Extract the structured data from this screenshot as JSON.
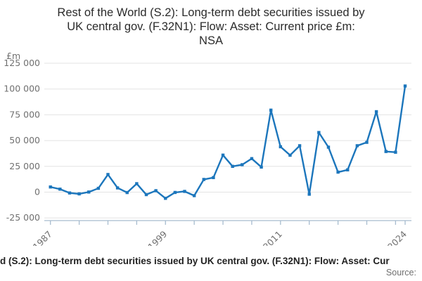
{
  "title_lines": [
    "Rest of the World (S.2): Long-term debt securities issued by",
    "UK central gov. (F.32N1): Flow: Asset: Current price £m:",
    "NSA"
  ],
  "footer": {
    "caption_visible": "d (S.2): Long-term debt securities issued by UK central gov. (F.32N1): Flow: Asset: Cur",
    "source_label": "Source:"
  },
  "chart_data": {
    "type": "line",
    "title": "Rest of the World (S.2): Long-term debt securities issued by UK central gov. (F.32N1): Flow: Asset: Current price £m: NSA",
    "ylabel": "£m",
    "xlabel": "",
    "grid": "horizontal",
    "legend": "none",
    "x": [
      1987,
      1988,
      1989,
      1990,
      1991,
      1992,
      1993,
      1994,
      1995,
      1996,
      1997,
      1998,
      1999,
      2000,
      2001,
      2002,
      2003,
      2004,
      2005,
      2006,
      2007,
      2008,
      2009,
      2010,
      2011,
      2012,
      2013,
      2014,
      2015,
      2016,
      2017,
      2018,
      2019,
      2020,
      2021,
      2022,
      2023,
      2024
    ],
    "values": [
      5000,
      2900,
      -800,
      -1700,
      100,
      3700,
      17100,
      4100,
      -400,
      8200,
      -2400,
      1400,
      -6000,
      -300,
      700,
      -3400,
      12300,
      14100,
      35900,
      25000,
      26600,
      32500,
      24300,
      79500,
      44000,
      35800,
      45000,
      -2000,
      57800,
      43600,
      19400,
      21600,
      45000,
      48300,
      78000,
      39400,
      38700,
      102900
    ],
    "ylim": [
      -25000,
      125000
    ],
    "ytick_values": [
      125000,
      100000,
      75000,
      50000,
      25000,
      0,
      -25000
    ],
    "ytick_labels": [
      "125 000",
      "100 000",
      "75 000",
      "50 000",
      "25 000",
      "0",
      "-25 000"
    ],
    "xtick_labeled_years": [
      1987,
      1999,
      2011,
      2024
    ],
    "xtick_minor_step": 3,
    "colors": {
      "line": "#1c76bc",
      "axis": "#a7bccf",
      "grid": "#e3e3e3",
      "tick_text": "#707070",
      "title_text": "#2b2b2b"
    }
  }
}
